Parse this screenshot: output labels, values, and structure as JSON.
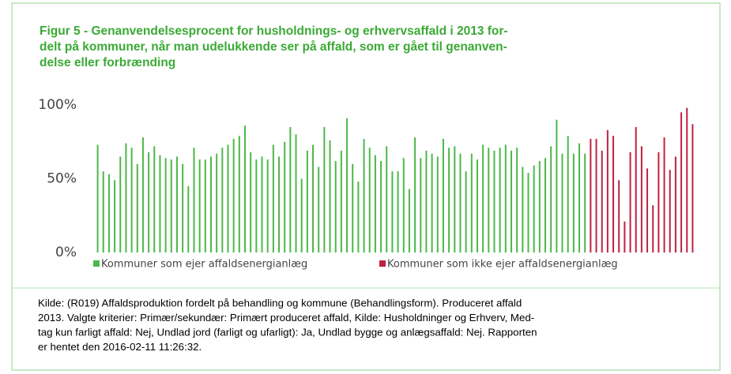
{
  "chart_data": {
    "type": "bar",
    "title": [
      "Figur 5 - Genanvendelsesprocent for husholdnings- og erhvervsaffald i 2013 for-",
      "delt på kommuner, når man udelukkende ser på affald, som er gået til genanven-",
      "delse eller forbrænding"
    ],
    "ylim": [
      0,
      100
    ],
    "yticks": [
      {
        "value": 0,
        "label": "0%"
      },
      {
        "value": 50,
        "label": "50%"
      },
      {
        "value": 100,
        "label": "100%"
      }
    ],
    "series": [
      {
        "name": "Kommuner som ejer affaldsenergianlæg",
        "color": "#4cb848",
        "values": [
          73,
          55,
          53,
          49,
          65,
          74,
          71,
          60,
          78,
          68,
          72,
          66,
          64,
          63,
          65,
          60,
          45,
          71,
          63,
          63,
          65,
          67,
          71,
          73,
          77,
          79,
          86,
          68,
          63,
          65,
          63,
          73,
          65,
          75,
          85,
          80,
          50,
          69,
          73,
          58,
          85,
          76,
          62,
          69,
          91,
          60,
          48,
          77,
          71,
          66,
          62,
          72,
          55,
          55,
          64,
          43,
          78,
          64,
          69,
          67,
          65,
          77,
          71,
          72,
          67,
          55,
          67,
          63,
          73,
          71,
          69,
          71,
          73,
          69,
          71,
          58,
          54,
          59,
          62,
          64,
          72,
          90,
          67,
          79,
          67,
          74,
          67
        ]
      },
      {
        "name": "Kommuner som ikke ejer affaldsenergianlæg",
        "color": "#c0213f",
        "values": [
          77,
          77,
          69,
          83,
          79,
          49,
          21,
          68,
          85,
          72,
          57,
          32,
          68,
          78,
          56,
          65,
          95,
          98,
          87
        ]
      }
    ],
    "source": [
      "Kilde: (R019) Affaldsproduktion fordelt på behandling og kommune (Behandlingsform). Produceret affald",
      "2013. Valgte kriterier: Primær/sekundær: Primært produceret affald, Kilde: Husholdninger og Erhverv, Med-",
      "tag kun farligt affald: Nej, Undlad jord (farligt og ufarligt): Ja, Undlad bygge og anlægsaffald: Nej. Rapporten",
      "er hentet den 2016-02-11 11:26:32."
    ]
  }
}
